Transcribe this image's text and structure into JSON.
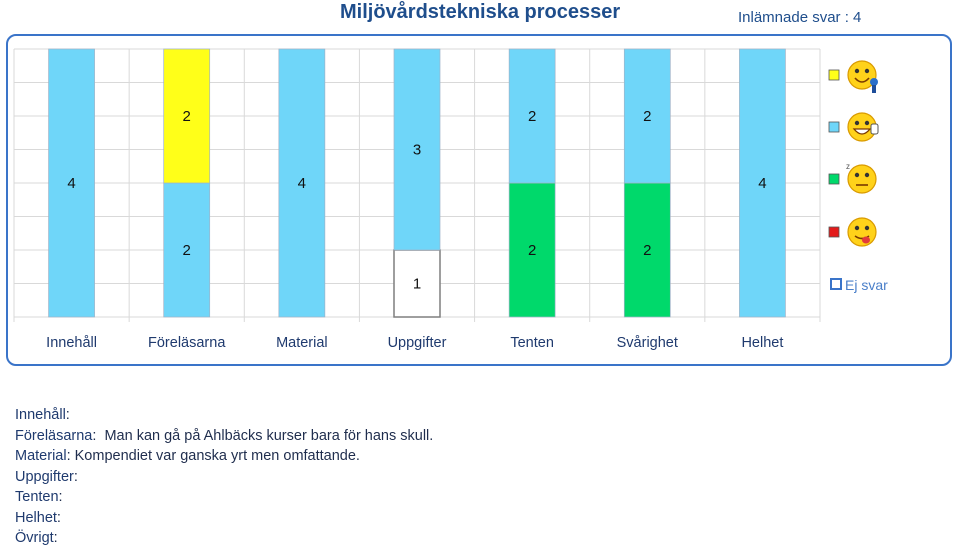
{
  "header": {
    "title": "Miljövårdstekniska processer",
    "submitted": "Inlämnade svar : 4"
  },
  "chart_data": {
    "type": "bar",
    "stacked": true,
    "categories": [
      "Innehåll",
      "Föreläsarna",
      "Material",
      "Uppgifter",
      "Tenten",
      "Svårighet",
      "Helhet"
    ],
    "total": 4,
    "series": [
      {
        "key": "noanswer",
        "color": "#ffffff",
        "border": "#7f7f7f",
        "values": [
          0,
          0,
          0,
          1,
          0,
          0,
          0
        ]
      },
      {
        "key": "green",
        "color": "#00d96b",
        "values": [
          0,
          0,
          0,
          0,
          2,
          2,
          0
        ]
      },
      {
        "key": "blue",
        "color": "#6fd6f9",
        "values": [
          4,
          2,
          4,
          3,
          2,
          2,
          4
        ]
      },
      {
        "key": "yellow",
        "color": "#ffff19",
        "values": [
          0,
          2,
          0,
          0,
          0,
          0,
          0
        ]
      }
    ],
    "legend": [
      {
        "color": "#ffff19",
        "icon": "happy-medal-smiley-icon"
      },
      {
        "color": "#6fd6f9",
        "icon": "smiley-thumbs-up-icon"
      },
      {
        "color": "#00d96b",
        "icon": "neutral-smiley-icon"
      },
      {
        "color": "#e31b1b",
        "icon": "tongue-out-smiley-icon"
      },
      {
        "color": "#ffffff",
        "label": "Ej svar"
      }
    ],
    "legend_position": "right",
    "grid": true
  },
  "comments": [
    {
      "label": "Innehåll",
      "sep": ":",
      "text": ""
    },
    {
      "label": "Föreläsarna",
      "sep": ":",
      "text": "  Man kan gå på Ahlbäcks kurser bara för hans skull."
    },
    {
      "label": "Material",
      "sep": ":",
      "text": " Kompendiet var ganska yrt men omfattande."
    },
    {
      "label": "Uppgifter",
      "sep": ":",
      "text": ""
    },
    {
      "label": "Tenten",
      "sep": ":",
      "text": ""
    },
    {
      "label": "Helhet",
      "sep": ":",
      "text": ""
    },
    {
      "label": "Övrigt",
      "sep": ":",
      "text": ""
    }
  ]
}
